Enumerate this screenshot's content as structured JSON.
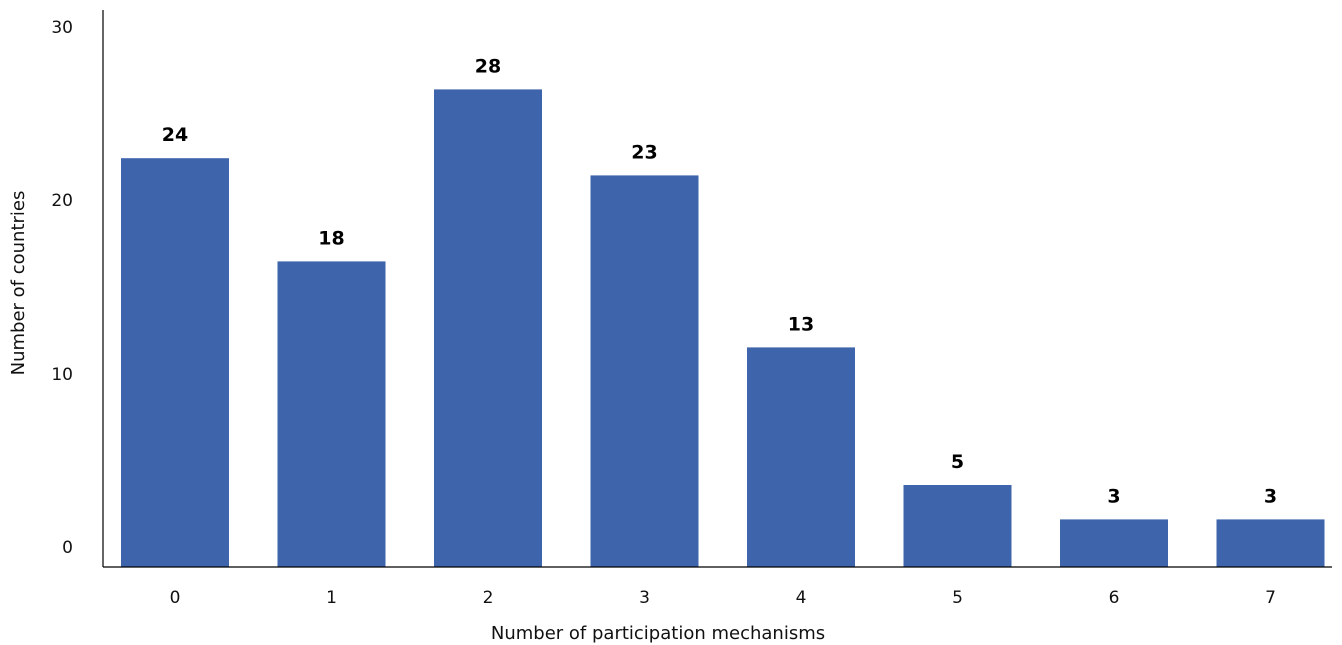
{
  "chart_data": {
    "type": "bar",
    "title": "",
    "xlabel": "Number of participation mechanisms",
    "ylabel": "Number of countries",
    "categories": [
      "0",
      "1",
      "2",
      "3",
      "4",
      "5",
      "6",
      "7"
    ],
    "values": [
      24,
      18,
      28,
      23,
      13,
      5,
      3,
      3
    ],
    "ylim": [
      0,
      30
    ],
    "yticks": [
      "0",
      "10",
      "20",
      "30"
    ],
    "grid": false,
    "legend": "none",
    "bar_color": "#3E64AB",
    "axis_color": "#000000"
  }
}
